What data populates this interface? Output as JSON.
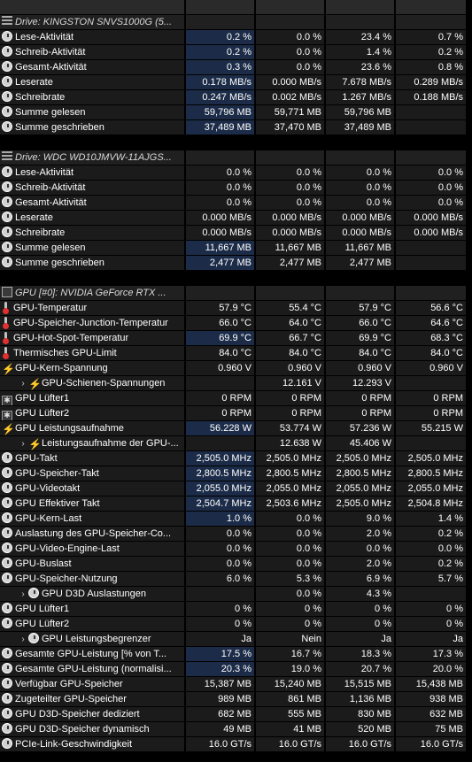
{
  "rows": [
    {
      "t": "top",
      "label": "",
      "icon": "",
      "vals": [
        "",
        "",
        "",
        ""
      ]
    },
    {
      "t": "hdr",
      "label": "Drive: KINGSTON SNVS1000G (5...",
      "icon": "drive-icon",
      "vals": [
        "",
        "",
        "",
        ""
      ]
    },
    {
      "t": "r",
      "label": "Lese-Aktivität",
      "icon": "clock-icon",
      "vals": [
        "0.2 %",
        "0.0 %",
        "23.4 %",
        "0.7 %"
      ],
      "hl": true
    },
    {
      "t": "r",
      "label": "Schreib-Aktivität",
      "icon": "clock-icon",
      "vals": [
        "0.2 %",
        "0.0 %",
        "1.4 %",
        "0.2 %"
      ],
      "hl": true
    },
    {
      "t": "r",
      "label": "Gesamt-Aktivität",
      "icon": "clock-icon",
      "vals": [
        "0.3 %",
        "0.0 %",
        "23.6 %",
        "0.8 %"
      ],
      "hl": true
    },
    {
      "t": "r",
      "label": "Leserate",
      "icon": "clock-icon",
      "vals": [
        "0.178 MB/s",
        "0.000 MB/s",
        "7.678 MB/s",
        "0.289 MB/s"
      ],
      "hl": true
    },
    {
      "t": "r",
      "label": "Schreibrate",
      "icon": "clock-icon",
      "vals": [
        "0.247 MB/s",
        "0.002 MB/s",
        "1.267 MB/s",
        "0.188 MB/s"
      ],
      "hl": true
    },
    {
      "t": "r",
      "label": "Summe gelesen",
      "icon": "clock-icon",
      "vals": [
        "59,796 MB",
        "59,771 MB",
        "59,796 MB",
        ""
      ],
      "hl": true
    },
    {
      "t": "r",
      "label": "Summe geschrieben",
      "icon": "clock-icon",
      "vals": [
        "37,489 MB",
        "37,470 MB",
        "37,489 MB",
        ""
      ],
      "hl": true
    },
    {
      "t": "blank",
      "label": "",
      "icon": "",
      "vals": [
        "",
        "",
        "",
        ""
      ]
    },
    {
      "t": "hdr",
      "label": "Drive: WDC WD10JMVW-11AJGS...",
      "icon": "drive-icon",
      "vals": [
        "",
        "",
        "",
        ""
      ]
    },
    {
      "t": "r",
      "label": "Lese-Aktivität",
      "icon": "clock-icon",
      "vals": [
        "0.0 %",
        "0.0 %",
        "0.0 %",
        "0.0 %"
      ]
    },
    {
      "t": "r",
      "label": "Schreib-Aktivität",
      "icon": "clock-icon",
      "vals": [
        "0.0 %",
        "0.0 %",
        "0.0 %",
        "0.0 %"
      ]
    },
    {
      "t": "r",
      "label": "Gesamt-Aktivität",
      "icon": "clock-icon",
      "vals": [
        "0.0 %",
        "0.0 %",
        "0.0 %",
        "0.0 %"
      ]
    },
    {
      "t": "r",
      "label": "Leserate",
      "icon": "clock-icon",
      "vals": [
        "0.000 MB/s",
        "0.000 MB/s",
        "0.000 MB/s",
        "0.000 MB/s"
      ]
    },
    {
      "t": "r",
      "label": "Schreibrate",
      "icon": "clock-icon",
      "vals": [
        "0.000 MB/s",
        "0.000 MB/s",
        "0.000 MB/s",
        "0.000 MB/s"
      ]
    },
    {
      "t": "r",
      "label": "Summe gelesen",
      "icon": "clock-icon",
      "vals": [
        "11,667 MB",
        "11,667 MB",
        "11,667 MB",
        ""
      ],
      "hl": true
    },
    {
      "t": "r",
      "label": "Summe geschrieben",
      "icon": "clock-icon",
      "vals": [
        "2,477 MB",
        "2,477 MB",
        "2,477 MB",
        ""
      ],
      "hl": true
    },
    {
      "t": "blank",
      "label": "",
      "icon": "",
      "vals": [
        "",
        "",
        "",
        ""
      ]
    },
    {
      "t": "hdr",
      "label": "GPU [#0]: NVIDIA GeForce RTX ...",
      "icon": "gpu-chip-icon",
      "vals": [
        "",
        "",
        "",
        ""
      ]
    },
    {
      "t": "r",
      "label": "GPU-Temperatur",
      "icon": "thermometer-icon",
      "vals": [
        "57.9 °C",
        "55.4 °C",
        "57.9 °C",
        "56.6 °C"
      ]
    },
    {
      "t": "r",
      "label": "GPU-Speicher-Junction-Temperatur",
      "icon": "thermometer-icon",
      "vals": [
        "66.0 °C",
        "64.0 °C",
        "66.0 °C",
        "64.6 °C"
      ]
    },
    {
      "t": "r",
      "label": "GPU-Hot-Spot-Temperatur",
      "icon": "thermometer-icon",
      "vals": [
        "69.9 °C",
        "66.7 °C",
        "69.9 °C",
        "68.3 °C"
      ],
      "hl": true
    },
    {
      "t": "r",
      "label": "Thermisches GPU-Limit",
      "icon": "thermometer-icon",
      "vals": [
        "84.0 °C",
        "84.0 °C",
        "84.0 °C",
        "84.0 °C"
      ]
    },
    {
      "t": "r",
      "label": "GPU-Kern-Spannung",
      "icon": "bolt-icon",
      "vals": [
        "0.960 V",
        "0.960 V",
        "0.960 V",
        "0.960 V"
      ]
    },
    {
      "t": "sub",
      "label": "GPU-Schienen-Spannungen",
      "icon": "bolt-icon",
      "vals": [
        "",
        "12.161 V",
        "12.293 V",
        ""
      ]
    },
    {
      "t": "r",
      "label": "GPU Lüfter1",
      "icon": "fan-icon",
      "vals": [
        "0 RPM",
        "0 RPM",
        "0 RPM",
        "0 RPM"
      ]
    },
    {
      "t": "r",
      "label": "GPU Lüfter2",
      "icon": "fan-icon",
      "vals": [
        "0 RPM",
        "0 RPM",
        "0 RPM",
        "0 RPM"
      ]
    },
    {
      "t": "r",
      "label": "GPU Leistungsaufnahme",
      "icon": "bolt-icon",
      "vals": [
        "56.228 W",
        "53.774 W",
        "57.236 W",
        "55.215 W"
      ],
      "hl": true
    },
    {
      "t": "sub",
      "label": "Leistungsaufnahme der GPU-...",
      "icon": "bolt-icon",
      "vals": [
        "",
        "12.638 W",
        "45.406 W",
        ""
      ]
    },
    {
      "t": "r",
      "label": "GPU-Takt",
      "icon": "clock-icon",
      "vals": [
        "2,505.0 MHz",
        "2,505.0 MHz",
        "2,505.0 MHz",
        "2,505.0 MHz"
      ],
      "hl": true
    },
    {
      "t": "r",
      "label": "GPU-Speicher-Takt",
      "icon": "clock-icon",
      "vals": [
        "2,800.5 MHz",
        "2,800.5 MHz",
        "2,800.5 MHz",
        "2,800.5 MHz"
      ],
      "hl": true
    },
    {
      "t": "r",
      "label": "GPU-Videotakt",
      "icon": "clock-icon",
      "vals": [
        "2,055.0 MHz",
        "2,055.0 MHz",
        "2,055.0 MHz",
        "2,055.0 MHz"
      ],
      "hl": true
    },
    {
      "t": "r",
      "label": "GPU Effektiver Takt",
      "icon": "clock-icon",
      "vals": [
        "2,504.7 MHz",
        "2,503.6 MHz",
        "2,505.0 MHz",
        "2,504.8 MHz"
      ],
      "hl": true
    },
    {
      "t": "r",
      "label": "GPU-Kern-Last",
      "icon": "clock-icon",
      "vals": [
        "1.0 %",
        "0.0 %",
        "9.0 %",
        "1.4 %"
      ],
      "hl": true
    },
    {
      "t": "r",
      "label": "Auslastung des GPU-Speicher-Co...",
      "icon": "clock-icon",
      "vals": [
        "0.0 %",
        "0.0 %",
        "2.0 %",
        "0.2 %"
      ]
    },
    {
      "t": "r",
      "label": "GPU-Video-Engine-Last",
      "icon": "clock-icon",
      "vals": [
        "0.0 %",
        "0.0 %",
        "0.0 %",
        "0.0 %"
      ]
    },
    {
      "t": "r",
      "label": "GPU-Buslast",
      "icon": "clock-icon",
      "vals": [
        "0.0 %",
        "0.0 %",
        "2.0 %",
        "0.2 %"
      ]
    },
    {
      "t": "r",
      "label": "GPU-Speicher-Nutzung",
      "icon": "clock-icon",
      "vals": [
        "6.0 %",
        "5.3 %",
        "6.9 %",
        "5.7 %"
      ]
    },
    {
      "t": "sub",
      "label": "GPU D3D Auslastungen",
      "icon": "clock-icon",
      "vals": [
        "",
        "0.0 %",
        "4.3 %",
        ""
      ]
    },
    {
      "t": "r",
      "label": "GPU Lüfter1",
      "icon": "clock-icon",
      "vals": [
        "0 %",
        "0 %",
        "0 %",
        "0 %"
      ]
    },
    {
      "t": "r",
      "label": "GPU Lüfter2",
      "icon": "clock-icon",
      "vals": [
        "0 %",
        "0 %",
        "0 %",
        "0 %"
      ]
    },
    {
      "t": "sub",
      "label": "GPU Leistungsbegrenzer",
      "icon": "clock-icon",
      "vals": [
        "Ja",
        "Nein",
        "Ja",
        "Ja"
      ]
    },
    {
      "t": "r",
      "label": "Gesamte GPU-Leistung [% von T...",
      "icon": "clock-icon",
      "vals": [
        "17.5 %",
        "16.7 %",
        "18.3 %",
        "17.3 %"
      ],
      "hl": true
    },
    {
      "t": "r",
      "label": "Gesamte GPU-Leistung (normalisi...",
      "icon": "clock-icon",
      "vals": [
        "20.3 %",
        "19.0 %",
        "20.7 %",
        "20.0 %"
      ],
      "hl": true
    },
    {
      "t": "r",
      "label": "Verfügbar GPU-Speicher",
      "icon": "clock-icon",
      "vals": [
        "15,387 MB",
        "15,240 MB",
        "15,515 MB",
        "15,438 MB"
      ]
    },
    {
      "t": "r",
      "label": "Zugeteilter GPU-Speicher",
      "icon": "clock-icon",
      "vals": [
        "989 MB",
        "861 MB",
        "1,136 MB",
        "938 MB"
      ]
    },
    {
      "t": "r",
      "label": "GPU D3D-Speicher dediziert",
      "icon": "clock-icon",
      "vals": [
        "682 MB",
        "555 MB",
        "830 MB",
        "632 MB"
      ]
    },
    {
      "t": "r",
      "label": "GPU D3D-Speicher dynamisch",
      "icon": "clock-icon",
      "vals": [
        "49 MB",
        "41 MB",
        "520 MB",
        "75 MB"
      ]
    },
    {
      "t": "r",
      "label": "PCIe-Link-Geschwindigkeit",
      "icon": "clock-icon",
      "vals": [
        "16.0 GT/s",
        "16.0 GT/s",
        "16.0 GT/s",
        "16.0 GT/s"
      ]
    }
  ],
  "icons": {
    "chevron": "›",
    "bolt": "⚡",
    "fan": "✱"
  }
}
